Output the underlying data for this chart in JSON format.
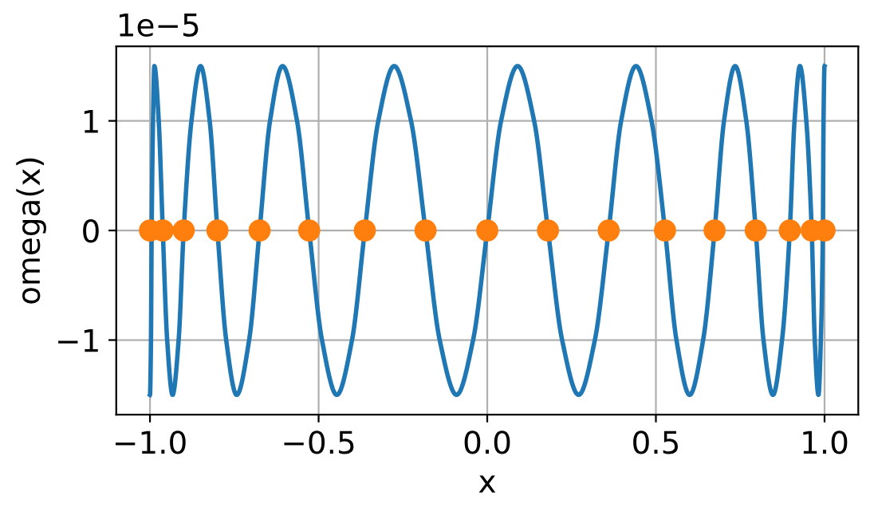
{
  "chart_data": {
    "type": "line",
    "xlabel": "x",
    "ylabel": "omega(x)",
    "annotations": [
      "1e−5"
    ],
    "series": [
      {
        "color": "#1f77b4",
        "x": [
          -1.0,
          -0.997,
          -0.995,
          -0.991,
          -0.987,
          -0.974,
          -0.962,
          -0.949,
          -0.933,
          -0.915,
          -0.9,
          -0.877,
          -0.85,
          -0.823,
          -0.8,
          -0.774,
          -0.743,
          -0.706,
          -0.675,
          -0.644,
          -0.607,
          -0.564,
          -0.528,
          -0.49,
          -0.446,
          -0.401,
          -0.363,
          -0.323,
          -0.276,
          -0.226,
          -0.183,
          -0.141,
          -0.091,
          -0.042,
          0.0,
          0.041,
          0.09,
          0.139,
          0.18,
          0.222,
          0.271,
          0.319,
          0.36,
          0.397,
          0.441,
          0.487,
          0.527,
          0.561,
          0.6,
          0.64,
          0.674,
          0.702,
          0.735,
          0.768,
          0.796,
          0.819,
          0.847,
          0.874,
          0.897,
          0.911,
          0.927,
          0.946,
          0.962,
          0.971,
          0.982,
          0.989,
          0.995,
          0.997,
          1.0
        ],
        "values": [
          -1.5,
          -1,
          0,
          1,
          1.5,
          1,
          0,
          -1,
          -1.5,
          -1,
          0,
          1,
          1.5,
          1,
          0,
          -1,
          -1.5,
          -1,
          0,
          1,
          1.5,
          1,
          0,
          -1,
          -1.5,
          -1,
          0,
          1,
          1.5,
          1,
          0,
          -1,
          -1.5,
          -1,
          0,
          1,
          1.5,
          1,
          0,
          -1,
          -1.5,
          -1,
          0,
          1,
          1.5,
          1,
          0,
          -1,
          -1.5,
          -1,
          0,
          1,
          1.5,
          1,
          0,
          -1,
          -1.5,
          -1,
          0,
          1,
          1.5,
          1,
          0,
          -1,
          -1.5,
          -1,
          0,
          1,
          1.5
        ]
      },
      {
        "type": "scatter",
        "color": "#ff7f0e",
        "marker": "circle",
        "x": [
          -1.0,
          -0.962,
          -0.9,
          -0.8,
          -0.675,
          -0.528,
          -0.363,
          -0.183,
          0.0,
          0.18,
          0.36,
          0.527,
          0.674,
          0.796,
          0.897,
          0.962,
          1.0
        ],
        "values": [
          0,
          0,
          0,
          0,
          0,
          0,
          0,
          0,
          0,
          0,
          0,
          0,
          0,
          0,
          0,
          0,
          0
        ]
      }
    ],
    "xlim": [
      -1.1,
      1.1
    ],
    "ylim": [
      -1.68,
      1.68
    ],
    "xticks": [
      {
        "value": -1.0,
        "label": "−1.0"
      },
      {
        "value": -0.5,
        "label": "−0.5"
      },
      {
        "value": 0.0,
        "label": "0.0"
      },
      {
        "value": 0.5,
        "label": "0.5"
      },
      {
        "value": 1.0,
        "label": "1.0"
      }
    ],
    "yticks": [
      {
        "value": -1,
        "label": "−1"
      },
      0,
      1
    ],
    "grid": true,
    "legend": false
  }
}
